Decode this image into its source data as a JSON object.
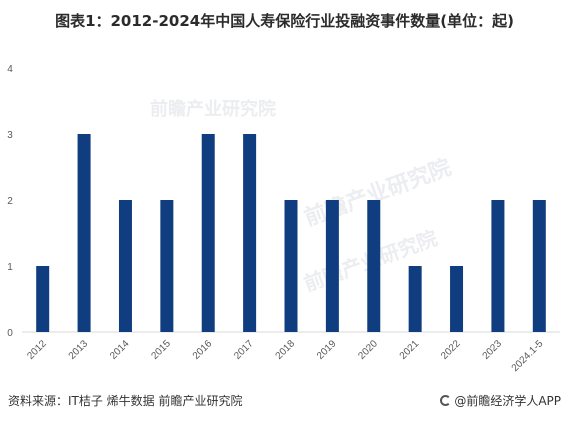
{
  "title": "图表1：2012-2024年中国人寿保险行业投融资事件数量(单位：起)",
  "source": "资料来源：IT桔子 烯牛数据 前瞻产业研究院",
  "brand": "@前瞻经济学人APP",
  "watermark": "前瞻产业研究院",
  "colors": {
    "bar": "#0f3d80",
    "axis": "#d9d9d9",
    "text": "#595959"
  },
  "chart_data": {
    "type": "bar",
    "title": "图表1：2012-2024年中国人寿保险行业投融资事件数量(单位：起)",
    "categories": [
      "2012",
      "2013",
      "2014",
      "2015",
      "2016",
      "2017",
      "2018",
      "2019",
      "2020",
      "2021",
      "2022",
      "2023",
      "2024.1-5"
    ],
    "values": [
      1,
      3,
      2,
      2,
      3,
      3,
      2,
      2,
      2,
      1,
      1,
      2,
      2
    ],
    "ylim": [
      0,
      4
    ],
    "yticks": [
      0,
      1,
      2,
      3,
      4
    ],
    "grid": false,
    "xlabel": "",
    "ylabel": ""
  }
}
